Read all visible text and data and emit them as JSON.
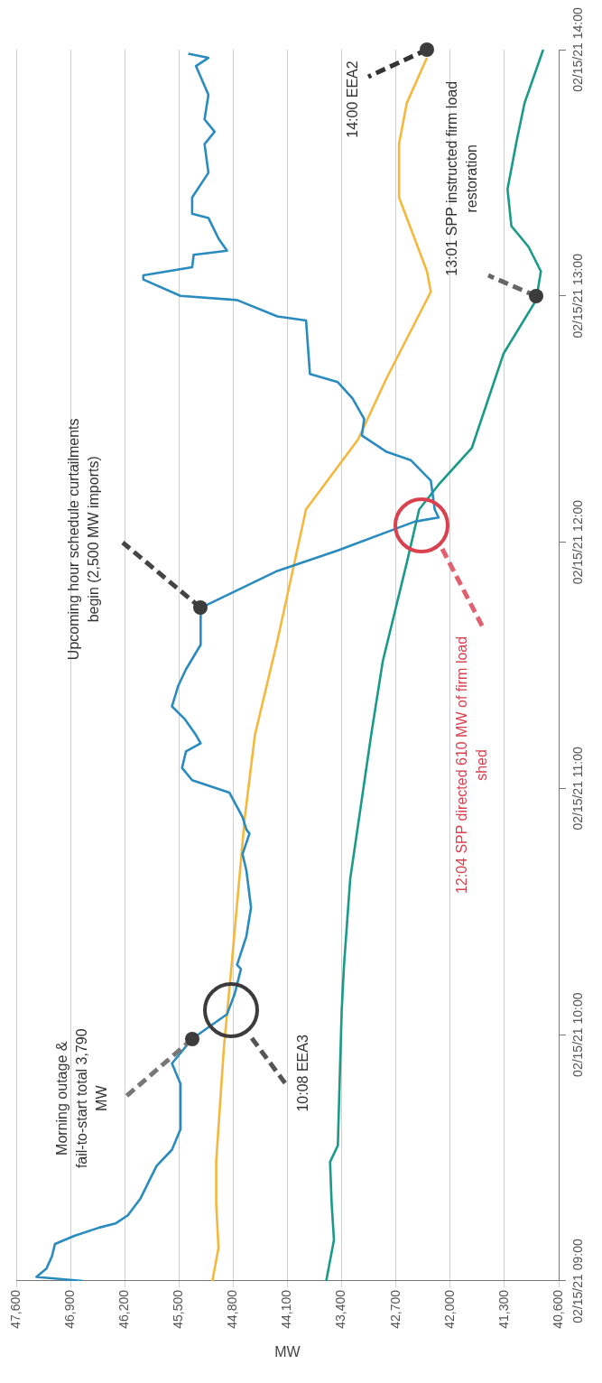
{
  "chart_data": {
    "type": "line",
    "orientation": "horizontal",
    "xlabel": "MW",
    "legend": false,
    "marker": "none",
    "grid": "x",
    "xlim": [
      47600,
      40600
    ],
    "xticks": [
      {
        "value": 47600,
        "label": "47,600"
      },
      {
        "value": 46900,
        "label": "46,900"
      },
      {
        "value": 46200,
        "label": "46,200"
      },
      {
        "value": 45500,
        "label": "45,500"
      },
      {
        "value": 44800,
        "label": "44,800"
      },
      {
        "value": 44100,
        "label": "44,100"
      },
      {
        "value": 43400,
        "label": "43,400"
      },
      {
        "value": 42700,
        "label": "42,700"
      },
      {
        "value": 42000,
        "label": "42,000"
      },
      {
        "value": 41300,
        "label": "41,300"
      },
      {
        "value": 40600,
        "label": "40,600"
      }
    ],
    "ylim": [
      "--02-15T09:00",
      "--02-15T14:00"
    ],
    "yticks": [
      {
        "value": "--02-15T09:00",
        "label": "02/15/21 09:00"
      },
      {
        "value": "--02-15T10:00",
        "label": "02/15/21 10:00"
      },
      {
        "value": "--02-15T11:00",
        "label": "02/15/21 11:00"
      },
      {
        "value": "--02-15T12:00",
        "label": "02/15/21 12:00"
      },
      {
        "value": "--02-15T13:00",
        "label": "02/15/21 13:00"
      },
      {
        "value": "--02-15T14:00",
        "label": "02/15/21 14:00"
      }
    ],
    "series": [
      {
        "color": "#2a8bbf",
        "x": [
          "--02-15T09:00",
          "--02-15T09:01",
          "--02-15T09:03",
          "--02-15T09:06",
          "--02-15T09:09",
          "--02-15T09:11",
          "--02-15T09:13",
          "--02-15T09:14",
          "--02-15T09:16",
          "--02-15T09:20",
          "--02-15T09:28",
          "--02-15T09:32",
          "--02-15T09:37",
          "--02-15T09:48",
          "--02-15T09:53",
          "--02-15T09:59",
          "--02-15T10:05",
          "--02-15T10:10",
          "--02-15T10:16",
          "--02-15T10:17",
          "--02-15T10:24",
          "--02-15T10:31",
          "--02-15T10:40",
          "--02-15T10:44",
          "--02-15T10:49",
          "--02-15T10:50",
          "--02-15T10:53",
          "--02-15T10:59",
          "--02-15T11:02",
          "--02-15T11:05",
          "--02-15T11:09",
          "--02-15T11:11",
          "--02-15T11:13",
          "--02-15T11:17",
          "--02-15T11:20",
          "--02-15T11:25",
          "--02-15T11:29",
          "--02-15T11:35",
          "--02-15T11:44",
          "--02-15T11:53",
          "--02-15T11:58",
          "--02-15T12:05",
          "--02-15T12:06",
          "--02-15T12:08",
          "--02-15T12:15",
          "--02-15T12:20",
          "--02-15T12:22",
          "--02-15T12:26",
          "--02-15T12:30",
          "--02-15T12:35",
          "--02-15T12:39",
          "--02-15T12:41",
          "--02-15T12:54",
          "--02-15T12:55",
          "--02-15T12:59",
          "--02-15T13:00",
          "--02-15T13:04",
          "--02-15T13:05",
          "--02-15T13:07",
          "--02-15T13:10",
          "--02-15T13:11",
          "--02-15T13:14",
          "--02-15T13:19",
          "--02-15T13:20",
          "--02-15T13:24",
          "--02-15T13:30",
          "--02-15T13:37",
          "--02-15T13:40",
          "--02-15T13:43",
          "--02-15T13:49",
          "--02-15T13:56",
          "--02-15T13:58",
          "--02-15T13:59"
        ],
        "values": [
          46740,
          47340,
          47210,
          47140,
          47100,
          46850,
          46530,
          46320,
          46160,
          46000,
          45790,
          45590,
          45480,
          45480,
          45590,
          45330,
          44880,
          44780,
          44700,
          44750,
          44630,
          44570,
          44630,
          44680,
          44590,
          44630,
          44680,
          44850,
          45330,
          45460,
          45410,
          45220,
          45280,
          45430,
          45590,
          45510,
          45410,
          45220,
          45220,
          44230,
          43450,
          42460,
          42150,
          42200,
          42250,
          42510,
          42820,
          43140,
          43110,
          43260,
          43450,
          43810,
          43860,
          44230,
          44750,
          45480,
          45960,
          45960,
          45330,
          45310,
          44880,
          44990,
          45120,
          45330,
          45330,
          45120,
          45170,
          45040,
          45170,
          45120,
          45280,
          45120,
          45380
        ]
      },
      {
        "color": "#f5b83d",
        "x": [
          "--02-15T09:00",
          "--02-15T09:08",
          "--02-15T09:19",
          "--02-15T09:29",
          "--02-15T09:57",
          "--02-15T10:15",
          "--02-15T10:53",
          "--02-15T11:13",
          "--02-15T11:36",
          "--02-15T12:08",
          "--02-15T12:25",
          "--02-15T12:40",
          "--02-15T13:01",
          "--02-15T13:06",
          "--02-15T13:24",
          "--02-15T13:37",
          "--02-15T13:47",
          "--02-15T13:58"
        ],
        "values": [
          45070,
          44990,
          45020,
          45020,
          44920,
          44830,
          44650,
          44520,
          44230,
          43860,
          43190,
          42820,
          42250,
          42300,
          42660,
          42660,
          42560,
          42300
        ]
      },
      {
        "color": "#1a9a88",
        "x": [
          "--02-15T09:00",
          "--02-15T09:10",
          "--02-15T09:19",
          "--02-15T09:29",
          "--02-15T09:33",
          "--02-15T10:06",
          "--02-15T10:17",
          "--02-15T10:38",
          "--02-15T11:13",
          "--02-15T11:31",
          "--02-15T11:55",
          "--02-15T12:08",
          "--02-15T12:14",
          "--02-15T12:23",
          "--02-15T12:46",
          "--02-15T12:59",
          "--02-15T13:06",
          "--02-15T13:12",
          "--02-15T13:17",
          "--02-15T13:26",
          "--02-15T13:38",
          "--02-15T13:47",
          "--02-15T14:00"
        ],
        "values": [
          43600,
          43500,
          43530,
          43550,
          43450,
          43400,
          43370,
          43290,
          43020,
          42870,
          42560,
          42400,
          42150,
          41720,
          41310,
          40890,
          40830,
          40990,
          41210,
          41260,
          41140,
          41040,
          40800
        ]
      }
    ],
    "annotations": [
      {
        "text": "Morning outage & fail-to-start total 3,790 MW",
        "x": 45330,
        "y": "--02-15T09:59"
      },
      "10:08 EEA3",
      "Upcoming hour schedule curtailments begin (2,500 MW imports)",
      "12:04 SPP directed 610 MW of firm load shed",
      {
        "text": "13:01 SPP instructed firm load restoration",
        "x": 40890,
        "y": "--02-15T13:00"
      },
      {
        "text": "14:00 EEA2",
        "x": 42300,
        "y": "--02-15T14:00"
      }
    ]
  }
}
